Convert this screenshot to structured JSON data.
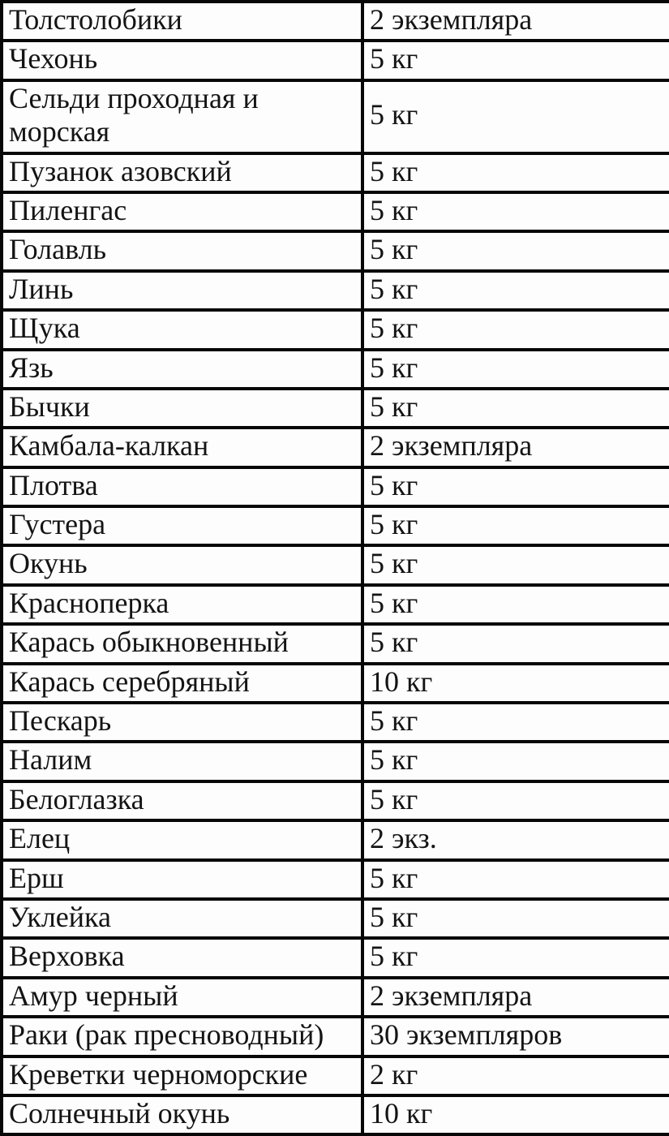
{
  "colors": {
    "border": "#070707",
    "background": "#fdfdfd",
    "text": "#141414"
  },
  "table": {
    "rows": [
      {
        "species": "Толстолобики",
        "quantity": "2 экземпляра"
      },
      {
        "species": "Чехонь",
        "quantity": "5 кг"
      },
      {
        "species": "Сельди проходная и\nморская",
        "quantity": "5 кг"
      },
      {
        "species": "Пузанок азовский",
        "quantity": "5 кг"
      },
      {
        "species": "Пиленгас",
        "quantity": "5 кг"
      },
      {
        "species": "Голавль",
        "quantity": "5 кг"
      },
      {
        "species": "Линь",
        "quantity": "5 кг"
      },
      {
        "species": "Щука",
        "quantity": "5 кг"
      },
      {
        "species": "Язь",
        "quantity": "5 кг"
      },
      {
        "species": "Бычки",
        "quantity": "5 кг"
      },
      {
        "species": "Камбала-калкан",
        "quantity": "2 экземпляра"
      },
      {
        "species": "Плотва",
        "quantity": "5 кг"
      },
      {
        "species": "Густера",
        "quantity": "5 кг"
      },
      {
        "species": "Окунь",
        "quantity": "5 кг"
      },
      {
        "species": "Красноперка",
        "quantity": "5 кг"
      },
      {
        "species": "Карась обыкновенный",
        "quantity": "5 кг"
      },
      {
        "species": "Карась серебряный",
        "quantity": "10 кг"
      },
      {
        "species": "Пескарь",
        "quantity": "5 кг"
      },
      {
        "species": "Налим",
        "quantity": "5 кг"
      },
      {
        "species": "Белоглазка",
        "quantity": "5 кг"
      },
      {
        "species": "Елец",
        "quantity": "2 экз."
      },
      {
        "species": "Ерш",
        "quantity": "5 кг"
      },
      {
        "species": "Уклейка",
        "quantity": "5 кг"
      },
      {
        "species": "Верховка",
        "quantity": "5 кг"
      },
      {
        "species": "Амур черный",
        "quantity": "2 экземпляра"
      },
      {
        "species": "Раки (рак пресноводный)",
        "quantity": "30 экземпляров"
      },
      {
        "species": "Креветки черноморские",
        "quantity": "2 кг"
      },
      {
        "species": "Солнечный окунь",
        "quantity": "10 кг"
      }
    ]
  }
}
